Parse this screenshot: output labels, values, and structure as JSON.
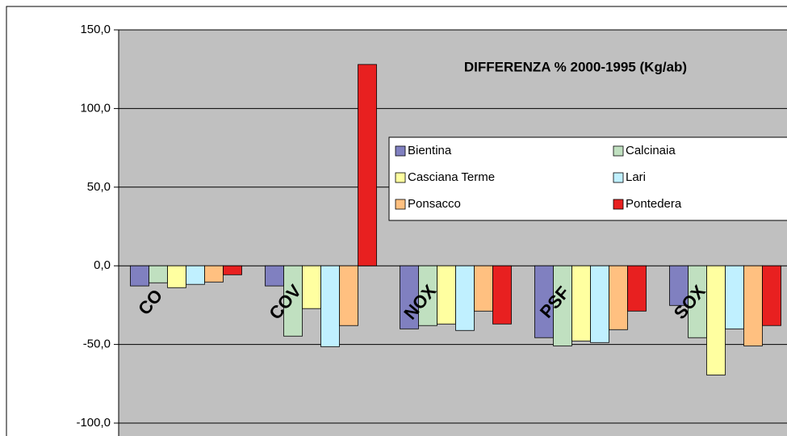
{
  "chart_data": {
    "type": "bar",
    "title": "DIFFERENZA % 2000-1995 (Kg/ab)",
    "categories": [
      "CO",
      "COV",
      "NOX",
      "PSF",
      "SOX"
    ],
    "series": [
      {
        "name": "Bientina",
        "color": "#8080c0",
        "values": [
          -12.8,
          -12.8,
          -40.1,
          -45.7,
          -25.2
        ]
      },
      {
        "name": "Calcinaia",
        "color": "#c0e0c0",
        "values": [
          -10.8,
          -44.7,
          -38.0,
          -50.9,
          -45.7
        ]
      },
      {
        "name": "Casciana Terme",
        "color": "#ffffa0",
        "values": [
          -13.9,
          -27.2,
          -37.0,
          -47.8,
          -69.4
        ]
      },
      {
        "name": "Lari",
        "color": "#c0f0ff",
        "values": [
          -11.8,
          -51.4,
          -41.1,
          -48.8,
          -40.1
        ]
      },
      {
        "name": "Ponsacco",
        "color": "#ffc080",
        "values": [
          -10.3,
          -38.0,
          -28.8,
          -40.6,
          -50.9
        ]
      },
      {
        "name": "Pontedera",
        "color": "#e82020",
        "values": [
          -5.7,
          128.0,
          -37.0,
          -28.8,
          -38.0
        ]
      }
    ],
    "ylim": [
      -100,
      150
    ],
    "yticks": [
      {
        "value": -100,
        "label": "-100,0"
      },
      {
        "value": -50,
        "label": "-50,0"
      },
      {
        "value": 0,
        "label": "0,0"
      },
      {
        "value": 50,
        "label": "50,0"
      },
      {
        "value": 100,
        "label": "100,0"
      },
      {
        "value": 150,
        "label": "150,0"
      }
    ],
    "grid": true
  }
}
